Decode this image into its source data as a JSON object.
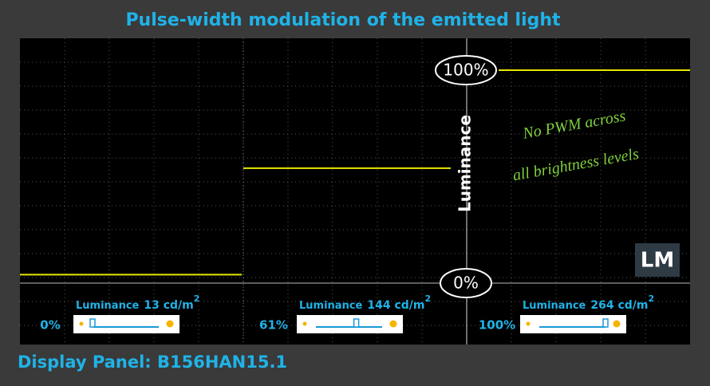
{
  "chart_data": {
    "type": "step",
    "title": "Pulse-width modulation of the emitted light",
    "ylabel": "Luminance",
    "ylim": [
      0,
      115
    ],
    "yticks": [
      {
        "value": 0,
        "label": "0%"
      },
      {
        "value": 100,
        "label": "100%"
      }
    ],
    "series": [
      {
        "color": "#e8e800",
        "values": [
          4,
          54,
          100
        ]
      }
    ],
    "luminance_label": "Luminance",
    "luminance": [
      "13 cd/m",
      "144 cd/m",
      "264 cd/m"
    ],
    "unit_power": "2",
    "brightness": [
      0,
      61,
      100
    ],
    "brightness_labels": [
      "0%",
      "61%",
      "100%"
    ],
    "annotation": [
      "No PWM across",
      "all brightness levels"
    ],
    "logo": "LM",
    "footer": "Display Panel: B156HAN15.1"
  }
}
